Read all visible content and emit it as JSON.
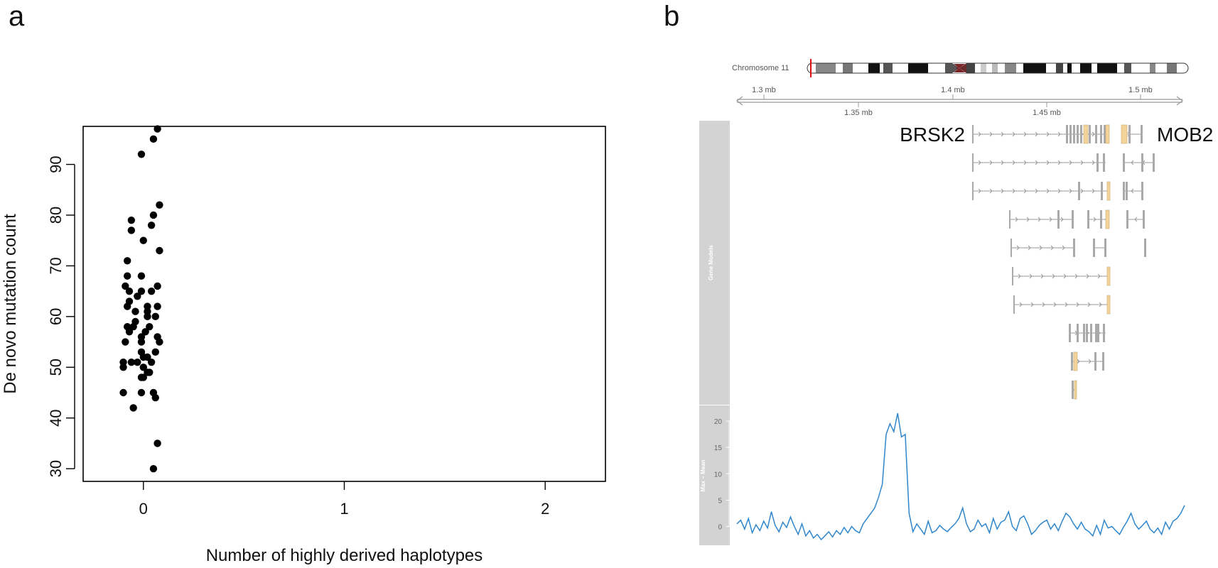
{
  "panels": {
    "a": {
      "letter": "a"
    },
    "b": {
      "letter": "b"
    }
  },
  "chart_data": [
    {
      "type": "scatter",
      "xlabel": "Number of highly derived haplotypes",
      "ylabel": "De novo mutation count",
      "x_ticks": [
        "0",
        "1",
        "2"
      ],
      "y_ticks": [
        "30",
        "40",
        "50",
        "60",
        "70",
        "80",
        "90"
      ],
      "xlim": [
        -0.3,
        2.3
      ],
      "ylim": [
        27.5,
        97.5
      ],
      "grid": false,
      "points": [
        {
          "x": 0.05,
          "y": 95
        },
        {
          "x": 0.08,
          "y": 73
        },
        {
          "x": -0.07,
          "y": 63
        },
        {
          "x": -0.08,
          "y": 62
        },
        {
          "x": 0.06,
          "y": 60
        },
        {
          "x": -0.08,
          "y": 58
        },
        {
          "x": -0.05,
          "y": 58
        },
        {
          "x": 0.01,
          "y": 57
        },
        {
          "x": -0.01,
          "y": 56
        },
        {
          "x": 0.07,
          "y": 56
        },
        {
          "x": -0.09,
          "y": 55
        },
        {
          "x": -0.01,
          "y": 55
        },
        {
          "x": -0.01,
          "y": 53
        },
        {
          "x": 0.06,
          "y": 53
        },
        {
          "x": 0.02,
          "y": 52
        },
        {
          "x": 0.04,
          "y": 51
        },
        {
          "x": -0.1,
          "y": 50
        },
        {
          "x": 0.0,
          "y": 50
        },
        {
          "x": 0.03,
          "y": 49
        },
        {
          "x": -0.01,
          "y": 48
        },
        {
          "x": 0.0,
          "y": 48
        },
        {
          "x": 0.05,
          "y": 30
        },
        {
          "x": -0.01,
          "y": 92
        },
        {
          "x": 0.05,
          "y": 80
        },
        {
          "x": -0.06,
          "y": 79
        },
        {
          "x": -0.08,
          "y": 71
        },
        {
          "x": -0.01,
          "y": 68
        },
        {
          "x": -0.09,
          "y": 66
        },
        {
          "x": 0.07,
          "y": 66
        },
        {
          "x": -0.07,
          "y": 65
        },
        {
          "x": 0.04,
          "y": 65
        },
        {
          "x": 0.02,
          "y": 62
        },
        {
          "x": -0.04,
          "y": 61
        },
        {
          "x": 0.02,
          "y": 61
        },
        {
          "x": -0.04,
          "y": 59
        },
        {
          "x": 0.03,
          "y": 58
        },
        {
          "x": -0.07,
          "y": 57
        },
        {
          "x": 0.08,
          "y": 55
        },
        {
          "x": 0.0,
          "y": 52
        },
        {
          "x": -0.1,
          "y": 51
        },
        {
          "x": -0.06,
          "y": 51
        },
        {
          "x": -0.01,
          "y": 45
        },
        {
          "x": 0.05,
          "y": 45
        },
        {
          "x": 0.06,
          "y": 44
        },
        {
          "x": -0.05,
          "y": 42
        },
        {
          "x": 0.07,
          "y": 97
        },
        {
          "x": 0.08,
          "y": 82
        },
        {
          "x": 0.04,
          "y": 78
        },
        {
          "x": -0.06,
          "y": 77
        },
        {
          "x": 0.0,
          "y": 75
        },
        {
          "x": -0.08,
          "y": 68
        },
        {
          "x": -0.01,
          "y": 65
        },
        {
          "x": -0.03,
          "y": 64
        },
        {
          "x": 0.07,
          "y": 62
        },
        {
          "x": 0.02,
          "y": 60
        },
        {
          "x": -0.03,
          "y": 51
        },
        {
          "x": 0.02,
          "y": 49
        },
        {
          "x": -0.1,
          "y": 45
        },
        {
          "x": 0.07,
          "y": 35
        }
      ],
      "point_color": "#000000"
    },
    {
      "type": "line",
      "chromosome_label": "Chromosome 11",
      "genome_axis_top_ticks": [
        "1.3 mb",
        "1.4 mb",
        "1.5 mb"
      ],
      "genome_axis_bottom_ticks": [
        "1.35 mb",
        "1.45 mb"
      ],
      "genes": [
        "BRSK2",
        "MOB2"
      ],
      "gene_track_title": "Gene Models",
      "signal_track_title": "Max − Mean",
      "y_ticks": [
        "0",
        "5",
        "10",
        "15",
        "20"
      ],
      "ylim": [
        -2.5,
        21.5
      ],
      "line_color": "#2f86cc",
      "utr_color": "#f2d49b",
      "exon_color": "#aaaaaa",
      "signal": {
        "x": [
          1.285,
          1.287,
          1.289,
          1.291,
          1.293,
          1.295,
          1.297,
          1.299,
          1.301,
          1.303,
          1.305,
          1.307,
          1.309,
          1.311,
          1.313,
          1.315,
          1.317,
          1.319,
          1.321,
          1.323,
          1.325,
          1.327,
          1.329,
          1.331,
          1.333,
          1.335,
          1.337,
          1.339,
          1.341,
          1.343,
          1.345,
          1.347,
          1.349,
          1.351,
          1.353,
          1.355,
          1.357,
          1.359,
          1.361,
          1.363,
          1.365,
          1.367,
          1.369,
          1.371,
          1.373,
          1.375,
          1.377,
          1.379,
          1.381,
          1.383,
          1.385,
          1.387,
          1.389,
          1.391,
          1.393,
          1.395,
          1.397,
          1.399,
          1.401,
          1.403,
          1.405,
          1.407,
          1.409,
          1.411,
          1.413,
          1.415,
          1.417,
          1.419,
          1.421,
          1.423,
          1.425,
          1.427,
          1.429,
          1.431,
          1.433,
          1.435,
          1.437,
          1.439,
          1.441,
          1.443,
          1.445,
          1.447,
          1.449,
          1.451,
          1.453,
          1.455,
          1.457,
          1.459,
          1.461,
          1.463,
          1.465,
          1.467,
          1.469,
          1.471,
          1.473,
          1.475,
          1.477,
          1.479,
          1.481,
          1.483,
          1.485,
          1.487,
          1.489,
          1.491,
          1.493,
          1.495,
          1.497,
          1.499,
          1.501,
          1.503,
          1.505,
          1.507,
          1.509,
          1.511,
          1.513,
          1.515,
          1.517,
          1.519
        ],
        "y": [
          0.5,
          1.2,
          -0.5,
          1.5,
          -1.2,
          0.3,
          -0.8,
          1.0,
          -0.3,
          2.8,
          0.2,
          -1.0,
          0.8,
          -0.2,
          1.8,
          0.0,
          -1.5,
          0.5,
          -1.8,
          -0.8,
          -2.2,
          -1.5,
          -2.5,
          -1.8,
          -1.0,
          -2.0,
          -0.8,
          -1.5,
          -0.2,
          -1.2,
          0.0,
          -0.8,
          -1.2,
          0.5,
          1.5,
          2.5,
          3.5,
          5.5,
          8.0,
          17.5,
          19.5,
          18.0,
          21.5,
          17.0,
          17.5,
          2.5,
          -1.0,
          0.5,
          -0.5,
          -1.5,
          1.0,
          -1.2,
          -0.8,
          0.2,
          -0.5,
          -1.0,
          -0.2,
          0.5,
          1.5,
          3.5,
          0.5,
          -1.0,
          -0.5,
          1.2,
          0.0,
          0.5,
          -1.2,
          1.5,
          -0.5,
          0.8,
          1.2,
          2.8,
          0.0,
          -0.8,
          1.5,
          2.0,
          0.5,
          -1.5,
          -0.8,
          0.2,
          0.8,
          1.2,
          -0.5,
          0.5,
          -0.8,
          1.0,
          2.5,
          1.8,
          0.5,
          -0.5,
          0.8,
          -0.5,
          -1.0,
          -1.8,
          0.2,
          -1.5,
          1.2,
          -0.3,
          0.0,
          -0.8,
          -1.5,
          -0.2,
          1.0,
          2.5,
          0.5,
          -0.5,
          0.2,
          1.0,
          -0.5,
          -1.2,
          -0.3,
          -1.5,
          0.8,
          -0.5,
          1.0,
          1.5,
          2.5,
          4.0
        ]
      }
    }
  ]
}
